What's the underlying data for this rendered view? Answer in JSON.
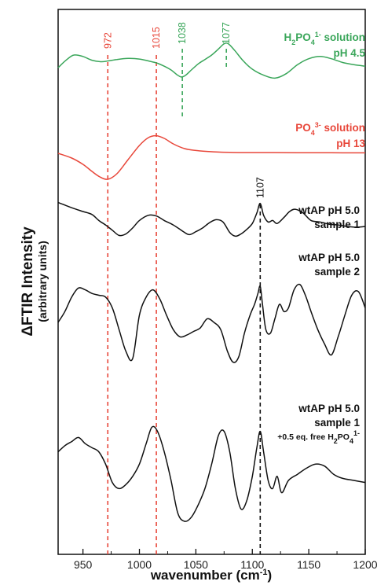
{
  "chart_data": {
    "type": "line",
    "title": "",
    "xlabel": "wavenumber (cm",
    "xlabel_sup": "-1",
    "xlabel_end": ")",
    "ylabel": "ΔFTIR Intensity",
    "ylabel_sub": "(arbitrary units)",
    "xlim": [
      928,
      1200
    ],
    "xticks": [
      950,
      1000,
      1050,
      1100,
      1150,
      1200
    ],
    "xtick_labels": [
      "950",
      "1000",
      "1050",
      "1100",
      "1150",
      "1200"
    ],
    "grid": false,
    "peak_markers": [
      {
        "x": 972,
        "label": "972",
        "color": "#e8473a"
      },
      {
        "x": 1015,
        "label": "1015",
        "color": "#e8473a"
      },
      {
        "x": 1038,
        "label": "1038",
        "color": "#3aa65a"
      },
      {
        "x": 1077,
        "label": "1077",
        "color": "#3aa65a"
      },
      {
        "x": 1107,
        "label": "1107",
        "color": "#111111"
      }
    ],
    "series": [
      {
        "name": "H2PO4 1- solution pH 4.5",
        "label_parts": [
          "H",
          "2",
          "PO",
          "4",
          "1-",
          " solution"
        ],
        "label_line2": "pH 4.5",
        "color": "#3aa65a",
        "x": [
          928,
          935,
          942,
          950,
          958,
          966,
          972,
          980,
          990,
          1000,
          1008,
          1015,
          1022,
          1028,
          1033,
          1037,
          1041,
          1046,
          1052,
          1058,
          1064,
          1070,
          1074,
          1077,
          1080,
          1085,
          1092,
          1100,
          1110,
          1120,
          1130,
          1140,
          1150,
          1160,
          1170,
          1180,
          1190,
          1200
        ],
        "y": [
          0.1,
          0.6,
          0.95,
          0.85,
          0.6,
          0.5,
          0.55,
          0.65,
          0.72,
          0.68,
          0.55,
          0.42,
          0.2,
          -0.05,
          -0.35,
          -0.52,
          -0.4,
          -0.05,
          0.35,
          0.65,
          0.95,
          1.35,
          1.65,
          1.75,
          1.62,
          1.2,
          0.55,
          0.0,
          -0.4,
          -0.6,
          -0.3,
          0.3,
          0.7,
          0.85,
          0.7,
          0.45,
          0.3,
          0.2
        ]
      },
      {
        "name": "PO4 3- solution pH 13",
        "label_parts": [
          "PO",
          "4",
          "3-",
          " solution"
        ],
        "label_line2": "pH 13",
        "color": "#e8473a",
        "x": [
          928,
          940,
          950,
          958,
          965,
          972,
          980,
          990,
          1000,
          1008,
          1015,
          1022,
          1030,
          1040,
          1050,
          1060,
          1070,
          1080,
          1090,
          1100,
          1120,
          1140,
          1160,
          1180,
          1200
        ],
        "y": [
          0.0,
          -0.3,
          -0.7,
          -1.15,
          -1.5,
          -1.65,
          -1.3,
          -0.4,
          0.5,
          1.0,
          1.12,
          0.95,
          0.6,
          0.3,
          0.18,
          0.12,
          0.08,
          0.06,
          0.05,
          0.05,
          0.05,
          0.04,
          0.04,
          0.03,
          0.03
        ]
      },
      {
        "name": "wtAP pH 5.0 sample 1",
        "label_line1": "wtAP pH 5.0",
        "label_line2": "sample 1",
        "color": "#111111",
        "x": [
          928,
          935,
          942,
          950,
          958,
          964,
          970,
          976,
          982,
          988,
          994,
          1000,
          1008,
          1015,
          1022,
          1030,
          1038,
          1044,
          1050,
          1056,
          1062,
          1068,
          1074,
          1080,
          1085,
          1090,
          1095,
          1100,
          1104,
          1107,
          1110,
          1114,
          1118,
          1122,
          1128,
          1133,
          1138,
          1145,
          1152,
          1160,
          1168,
          1176,
          1184,
          1192,
          1200
        ],
        "y": [
          1.6,
          1.4,
          1.2,
          1.0,
          0.8,
          0.4,
          0.1,
          -0.25,
          -0.6,
          -0.5,
          -0.1,
          0.4,
          0.75,
          0.7,
          0.4,
          0.1,
          -0.3,
          -0.55,
          -0.35,
          -0.1,
          0.25,
          0.45,
          0.3,
          -0.4,
          -0.65,
          -0.5,
          -0.2,
          0.2,
          0.9,
          1.55,
          0.75,
          0.3,
          0.4,
          0.2,
          0.6,
          1.0,
          1.15,
          0.9,
          0.4,
          0.3,
          0.15,
          0.1,
          0.0,
          -0.05,
          0.0
        ]
      },
      {
        "name": "wtAP pH 5.0 sample 2",
        "label_line1": "wtAP pH 5.0",
        "label_line2": "sample 2",
        "color": "#111111",
        "x": [
          928,
          934,
          940,
          946,
          952,
          958,
          964,
          970,
          976,
          982,
          988,
          994,
          1000,
          1006,
          1012,
          1018,
          1024,
          1030,
          1036,
          1042,
          1048,
          1054,
          1060,
          1066,
          1072,
          1078,
          1083,
          1088,
          1093,
          1098,
          1102,
          1105,
          1107,
          1109,
          1112,
          1116,
          1120,
          1124,
          1128,
          1132,
          1137,
          1142,
          1147,
          1152,
          1158,
          1164,
          1170,
          1176,
          1182,
          1188,
          1194,
          1200
        ],
        "y": [
          0.0,
          0.3,
          0.7,
          0.95,
          0.9,
          0.8,
          0.75,
          0.7,
          0.4,
          -0.2,
          -0.8,
          -1.0,
          0.2,
          0.7,
          0.9,
          0.65,
          0.2,
          -0.2,
          -0.4,
          -0.35,
          -0.25,
          -0.15,
          0.1,
          0.0,
          -0.2,
          -0.8,
          -1.1,
          -0.95,
          -0.3,
          0.2,
          0.5,
          0.8,
          1.0,
          0.5,
          -0.2,
          -0.3,
          0.1,
          0.5,
          0.3,
          0.4,
          0.9,
          1.05,
          0.75,
          0.3,
          -0.2,
          -0.6,
          -0.9,
          -0.4,
          0.2,
          0.75,
          0.85,
          0.4
        ]
      },
      {
        "name": "wtAP pH 5.0 sample 1 +0.5 eq. free H2PO4 1-",
        "label_line1": "wtAP pH 5.0",
        "label_line2": "sample 1",
        "label_line3_parts": [
          "+0.5 eq. free H",
          "2",
          "PO",
          "4",
          "1-"
        ],
        "color": "#111111",
        "x": [
          928,
          934,
          940,
          946,
          952,
          958,
          964,
          970,
          976,
          982,
          988,
          994,
          1000,
          1006,
          1011,
          1016,
          1022,
          1028,
          1034,
          1040,
          1046,
          1052,
          1058,
          1064,
          1070,
          1075,
          1080,
          1085,
          1090,
          1095,
          1100,
          1104,
          1107,
          1110,
          1114,
          1118,
          1122,
          1126,
          1132,
          1140,
          1148,
          1156,
          1164,
          1172,
          1180,
          1190,
          1200
        ],
        "y": [
          0.2,
          0.35,
          0.45,
          0.55,
          0.4,
          0.3,
          0.2,
          -0.1,
          -0.55,
          -0.7,
          -0.6,
          -0.4,
          -0.1,
          0.4,
          0.8,
          0.7,
          0.2,
          -0.5,
          -1.3,
          -1.5,
          -1.4,
          -1.1,
          -0.7,
          -0.1,
          0.6,
          0.7,
          0.2,
          -0.7,
          -1.2,
          -1.0,
          -0.4,
          0.3,
          0.7,
          0.2,
          -0.5,
          -0.7,
          -0.4,
          -0.8,
          -0.5,
          -0.35,
          -0.2,
          -0.1,
          -0.15,
          -0.35,
          -0.45,
          -0.5,
          -0.55
        ]
      }
    ]
  }
}
